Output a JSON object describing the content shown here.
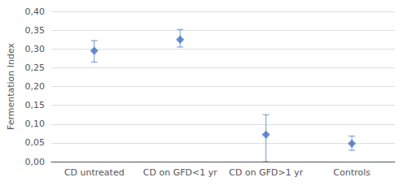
{
  "chart_data": {
    "type": "scatter",
    "ylabel": "Fermentation Index",
    "categories": [
      "CD untreated",
      "CD on GFD<1 yr",
      "CD on GFD>1 yr",
      "Controls"
    ],
    "values": [
      0.295,
      0.325,
      0.072,
      0.048
    ],
    "errors_upper": [
      0.027,
      0.027,
      0.053,
      0.02
    ],
    "errors_lower": [
      0.03,
      0.02,
      0.072,
      0.018
    ],
    "color": "#4472C4",
    "marker": "diamond",
    "ylim": [
      0.0,
      0.4
    ],
    "yticks": [
      {
        "value": 0.0,
        "label": "0,00"
      },
      {
        "value": 0.05,
        "label": "0,05"
      },
      {
        "value": 0.1,
        "label": "0,10"
      },
      {
        "value": 0.15,
        "label": "0,15"
      },
      {
        "value": 0.2,
        "label": "0,20"
      },
      {
        "value": 0.25,
        "label": "0,25"
      },
      {
        "value": 0.3,
        "label": "0,30"
      },
      {
        "value": 0.35,
        "label": "0,35"
      },
      {
        "value": 0.4,
        "label": "0,40"
      }
    ],
    "grid": true
  }
}
